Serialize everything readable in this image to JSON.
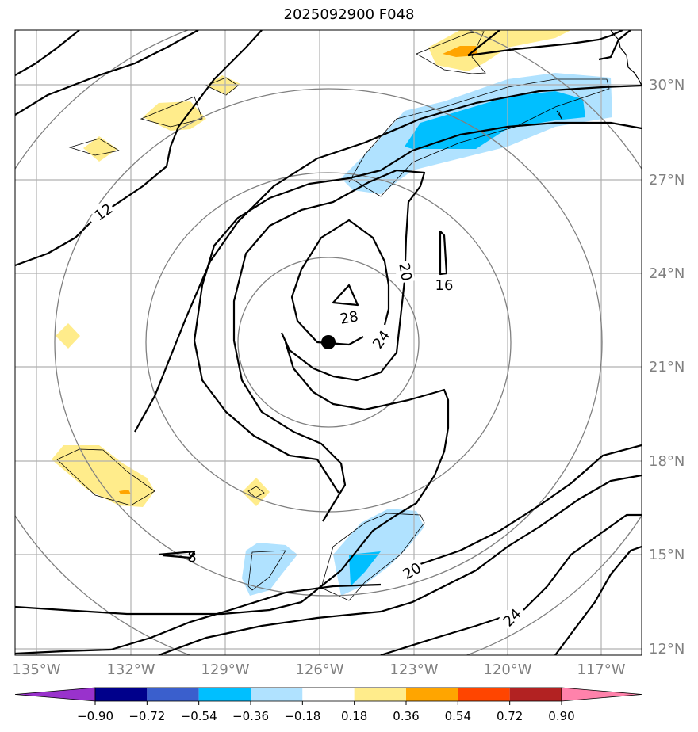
{
  "title": "2025092900 F048",
  "latitude_labels": [
    "30°N",
    "27°N",
    "24°N",
    "21°N",
    "18°N",
    "15°N",
    "12°N"
  ],
  "longitude_labels": [
    "135°W",
    "132°W",
    "129°W",
    "126°W",
    "123°W",
    "120°W",
    "117°W"
  ],
  "contour_labels": [
    "12",
    "20",
    "16",
    "28",
    "24",
    "8",
    "20",
    "24"
  ],
  "colorbar": {
    "colors": [
      "#9932CC",
      "#00008B",
      "#3A5FCD",
      "#00BFFF",
      "#B0E2FF",
      "#FFFFFF",
      "#FFEC8B",
      "#FFA500",
      "#FF4500",
      "#B22222",
      "#FF82AB"
    ],
    "tick_labels": [
      "−0.90",
      "−0.72",
      "−0.54",
      "−0.36",
      "−0.18",
      "0.18",
      "0.36",
      "0.54",
      "0.72",
      "0.90"
    ]
  },
  "colors": {
    "grid": "#b0b0b0",
    "range_rings": "#808080",
    "contour": "#000000",
    "axis_labels": "#808080"
  }
}
